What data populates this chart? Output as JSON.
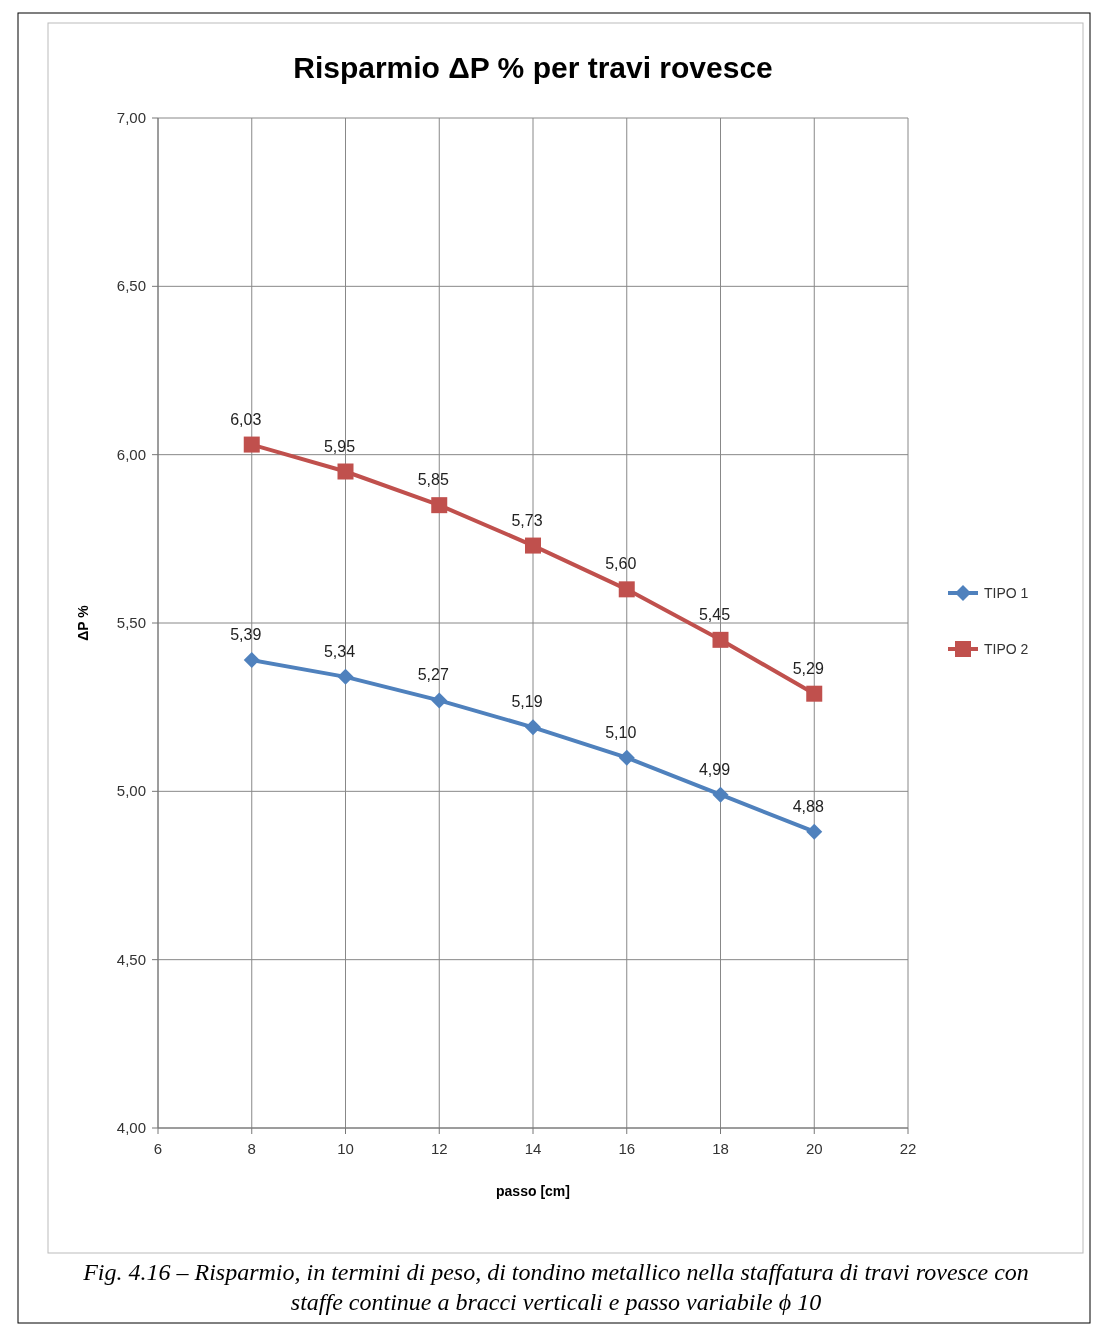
{
  "chart_data": {
    "type": "line",
    "title": "Risparmio ΔP % per travi rovesce",
    "xlabel": "passo [cm]",
    "ylabel": "ΔP %",
    "x": [
      8,
      10,
      12,
      14,
      16,
      18,
      20
    ],
    "series": [
      {
        "name": "TIPO 1",
        "color": "#4f81bd",
        "marker": "diamond",
        "values": [
          5.39,
          5.34,
          5.27,
          5.19,
          5.1,
          4.99,
          4.88
        ],
        "value_labels": [
          "5,39",
          "5,34",
          "5,27",
          "5,19",
          "5,10",
          "4,99",
          "4,88"
        ]
      },
      {
        "name": "TIPO 2",
        "color": "#c0504d",
        "marker": "square",
        "values": [
          6.03,
          5.95,
          5.85,
          5.73,
          5.6,
          5.45,
          5.29
        ],
        "value_labels": [
          "6,03",
          "5,95",
          "5,85",
          "5,73",
          "5,60",
          "5,45",
          "5,29"
        ]
      }
    ],
    "xlim": [
      6,
      22
    ],
    "xticks": [
      6,
      8,
      10,
      12,
      14,
      16,
      18,
      20,
      22
    ],
    "ylim": [
      4,
      7
    ],
    "yticks": [
      {
        "value": 7,
        "label": "7,00"
      },
      {
        "value": 6.5,
        "label": "6,50"
      },
      {
        "value": 6,
        "label": "6,00"
      },
      {
        "value": 5.5,
        "label": "5,50"
      },
      {
        "value": 5,
        "label": "5,00"
      },
      {
        "value": 4.5,
        "label": "4,50"
      },
      {
        "value": 4,
        "label": "4,00"
      }
    ],
    "grid": true,
    "legend": "right",
    "annotations": [
      "Fig. 4.16 – Risparmio, in termini di peso, di tondino metallico nella staffatura di travi rovesce con staffe continue a bracci verticali e passo variabile ϕ 10"
    ]
  }
}
